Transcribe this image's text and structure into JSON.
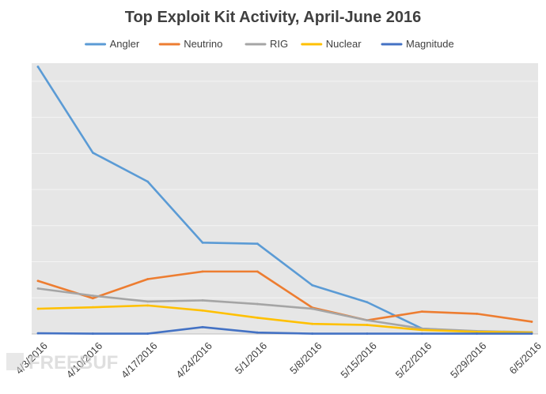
{
  "chart_data": {
    "type": "line",
    "title": "Top Exploit Kit Activity, April-June 2016",
    "x": [
      "4/3/2016",
      "4/10/2016",
      "4/17/2016",
      "4/24/2016",
      "5/1/2016",
      "5/8/2016",
      "5/15/2016",
      "5/22/2016",
      "5/29/2016",
      "6/5/2016"
    ],
    "series": [
      {
        "name": "Angler",
        "color": "#5B9BD5",
        "values": [
          740,
          502,
          422,
          253,
          250,
          135,
          88,
          15,
          6,
          3
        ]
      },
      {
        "name": "Neutrino",
        "color": "#ED7D31",
        "values": [
          147,
          99,
          152,
          173,
          173,
          73,
          38,
          62,
          56,
          34
        ]
      },
      {
        "name": "RIG",
        "color": "#A5A5A5",
        "values": [
          126,
          106,
          90,
          93,
          83,
          70,
          38,
          15,
          8,
          5
        ]
      },
      {
        "name": "Nuclear",
        "color": "#FFC000",
        "values": [
          70,
          74,
          79,
          65,
          45,
          28,
          25,
          11,
          6,
          4
        ]
      },
      {
        "name": "Magnitude",
        "color": "#4472C4",
        "values": [
          2,
          1,
          1,
          19,
          4,
          1,
          1,
          1,
          1,
          1
        ]
      }
    ],
    "ylim": [
      0,
      750
    ],
    "grid": true,
    "y_tick_labels_shown": false,
    "legend_position": "top"
  },
  "watermark": {
    "text": "FREEBUF"
  }
}
